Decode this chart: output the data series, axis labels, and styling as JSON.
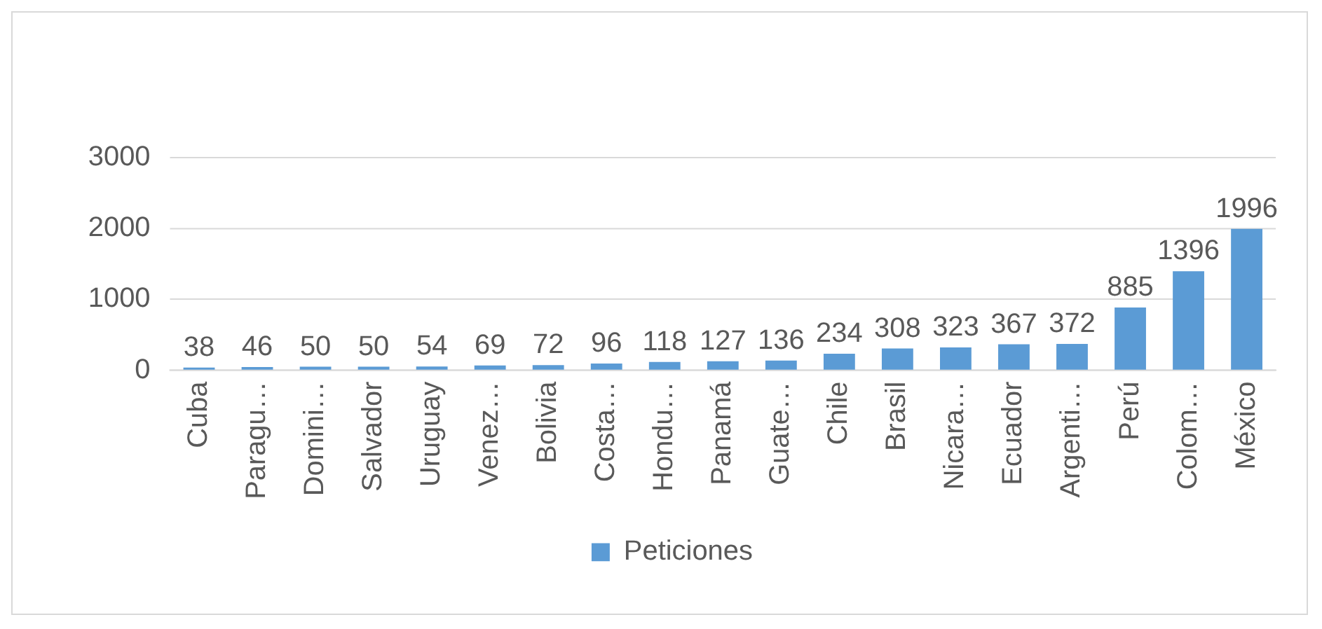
{
  "chart_data": {
    "type": "bar",
    "categories": [
      "Cuba",
      "Paragu…",
      "Domini…",
      "Salvador",
      "Uruguay",
      "Venez…",
      "Bolivia",
      "Costa…",
      "Hondu…",
      "Panamá",
      "Guate…",
      "Chile",
      "Brasil",
      "Nicara…",
      "Ecuador",
      "Argenti…",
      "Perú",
      "Colom…",
      "México"
    ],
    "series": [
      {
        "name": "Peticiones",
        "color": "#5b9bd5",
        "values": [
          38,
          46,
          50,
          50,
          54,
          69,
          72,
          96,
          118,
          127,
          136,
          234,
          308,
          323,
          367,
          372,
          885,
          1396,
          1996
        ]
      }
    ],
    "ylim": [
      0,
      3000
    ],
    "yticks": [
      0,
      1000,
      2000,
      3000
    ],
    "grid": "y",
    "legend": "bottom",
    "data_labels": true
  }
}
